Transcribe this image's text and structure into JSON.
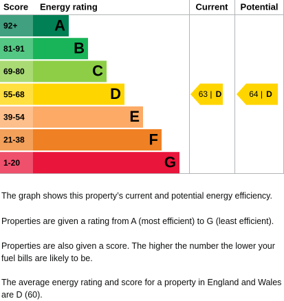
{
  "header": {
    "score": "Score",
    "rating": "Energy rating",
    "current": "Current",
    "potential": "Potential"
  },
  "rows": [
    {
      "score": "92+",
      "rating": "A",
      "color": "#008054"
    },
    {
      "score": "81-91",
      "rating": "B",
      "color": "#19b459"
    },
    {
      "score": "69-80",
      "rating": "C",
      "color": "#8dce46"
    },
    {
      "score": "55-68",
      "rating": "D",
      "color": "#ffd500"
    },
    {
      "score": "39-54",
      "rating": "E",
      "color": "#fcaa65"
    },
    {
      "score": "21-38",
      "rating": "F",
      "color": "#ef8023"
    },
    {
      "score": "1-20",
      "rating": "G",
      "color": "#e9153b"
    }
  ],
  "current": {
    "score": "63 |",
    "rating": "D"
  },
  "potential": {
    "score": "64 |",
    "rating": "D"
  },
  "paragraphs": [
    "The graph shows this property’s current and potential energy efficiency.",
    "Properties are given a rating from A (most efficient) to G (least efficient).",
    "Properties are also given a score. The higher the number the lower your fuel bills are likely to be.",
    "The average energy rating and score for a property in England and Wales are D (60)."
  ]
}
